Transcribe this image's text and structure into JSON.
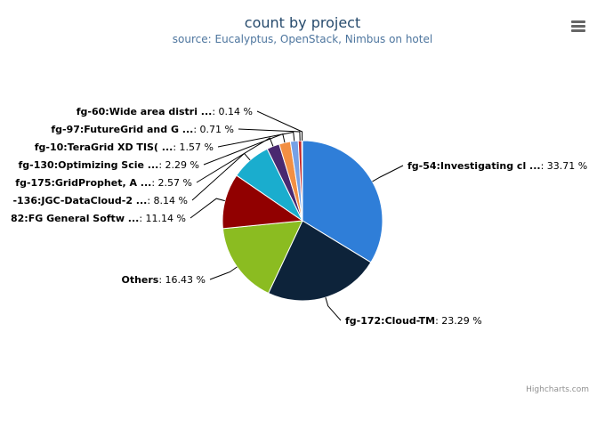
{
  "chart_data": {
    "type": "pie",
    "title": "count by project",
    "subtitle": "source: Eucalyptus, OpenStack, Nimbus on hotel",
    "unit": "%",
    "slices": [
      {
        "name": "fg-54:Investigating cl ...",
        "value": 33.71,
        "label": "33.71 %",
        "color": "#2f7ed8"
      },
      {
        "name": "fg-172:Cloud-TM",
        "value": 23.29,
        "label": "23.29 %",
        "color": "#0d233a"
      },
      {
        "name": "Others",
        "value": 16.43,
        "label": "16.43 %",
        "color": "#8bbc21"
      },
      {
        "name": "82:FG General Softw ...",
        "value": 11.14,
        "label": "11.14 %",
        "color": "#910000"
      },
      {
        "name": "-136:JGC-DataCloud-2 ...",
        "value": 8.14,
        "label": "8.14 %",
        "color": "#1aadce"
      },
      {
        "name": "fg-175:GridProphet, A ...",
        "value": 2.57,
        "label": "2.57 %",
        "color": "#492970"
      },
      {
        "name": "fg-130:Optimizing Scie ...",
        "value": 2.29,
        "label": "2.29 %",
        "color": "#f28f43"
      },
      {
        "name": "fg-10:TeraGrid XD TIS( ...",
        "value": 1.57,
        "label": "1.57 %",
        "color": "#77a1e5"
      },
      {
        "name": "fg-97:FutureGrid and G ...",
        "value": 0.71,
        "label": "0.71 %",
        "color": "#c42525"
      },
      {
        "name": "fg-60:Wide area distri ...",
        "value": 0.14,
        "label": "0.14 %",
        "color": "#a6c96a"
      }
    ]
  },
  "credits": "Highcharts.com",
  "menu_icon": "hamburger-menu-icon"
}
